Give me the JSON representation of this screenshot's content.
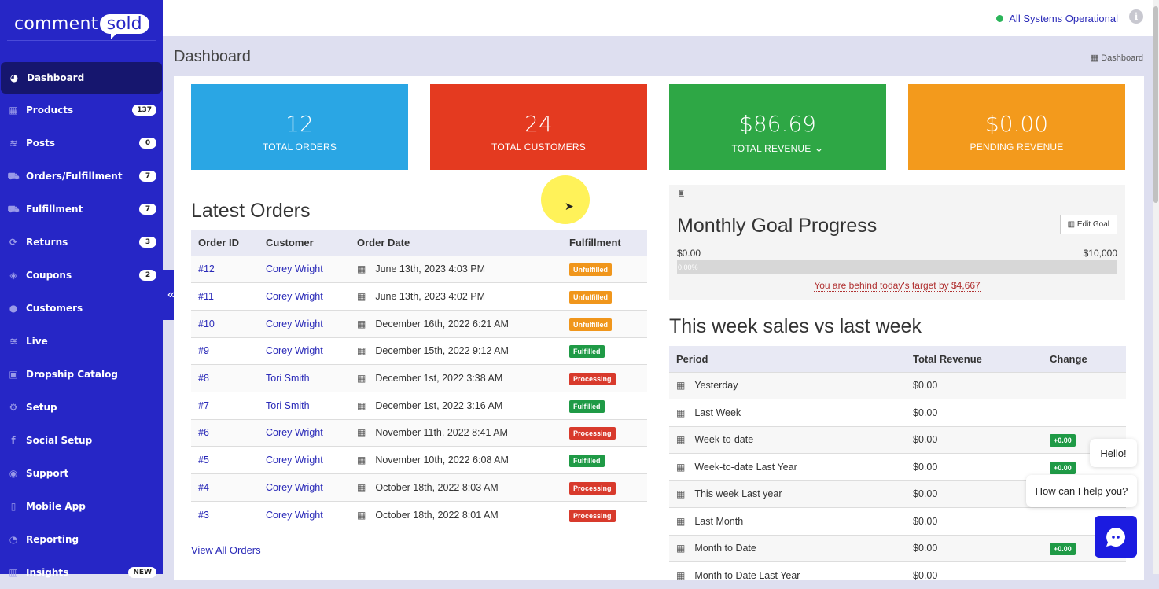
{
  "brand": {
    "logo_left": "comment",
    "logo_right": "sold"
  },
  "sidebar": {
    "items": [
      {
        "label": "Dashboard",
        "icon": "tachometer-icon",
        "glyph": "◕",
        "active": true
      },
      {
        "label": "Products",
        "icon": "grid-icon",
        "glyph": "▦",
        "badge": "137"
      },
      {
        "label": "Posts",
        "icon": "rss-icon",
        "glyph": "≋",
        "badge": "0"
      },
      {
        "label": "Orders/Fulfillment",
        "icon": "truck-icon",
        "glyph": "⛟",
        "badge": "7"
      },
      {
        "label": "Fulfillment",
        "icon": "truck-icon",
        "glyph": "⛟",
        "badge": "7"
      },
      {
        "label": "Returns",
        "icon": "refresh-icon",
        "glyph": "⟳",
        "badge": "3"
      },
      {
        "label": "Coupons",
        "icon": "ticket-icon",
        "glyph": "◈",
        "badge": "2"
      },
      {
        "label": "Customers",
        "icon": "user-icon",
        "glyph": "●"
      },
      {
        "label": "Live",
        "icon": "rss-icon",
        "glyph": "≋"
      },
      {
        "label": "Dropship Catalog",
        "icon": "box-icon",
        "glyph": "▣"
      },
      {
        "label": "Setup",
        "icon": "gears-icon",
        "glyph": "⚙"
      },
      {
        "label": "Social Setup",
        "icon": "facebook-icon",
        "glyph": "f"
      },
      {
        "label": "Support",
        "icon": "comments-icon",
        "glyph": "◉"
      },
      {
        "label": "Mobile App",
        "icon": "mobile-icon",
        "glyph": "▯"
      },
      {
        "label": "Reporting",
        "icon": "pie-chart-icon",
        "glyph": "◔"
      },
      {
        "label": "Insights",
        "icon": "bar-chart-icon",
        "glyph": "▥",
        "badge": "NEW"
      }
    ],
    "collapse": "«"
  },
  "topbar": {
    "status": "All Systems Operational",
    "status_color": "#2bb55a"
  },
  "page": {
    "title": "Dashboard",
    "breadcrumb": "Dashboard"
  },
  "stats": [
    {
      "value": "12",
      "label": "TOTAL ORDERS",
      "color": "#2aa6e4"
    },
    {
      "value": "24",
      "label": "TOTAL CUSTOMERS",
      "color": "#e43a20"
    },
    {
      "value": "$86.69",
      "label": "TOTAL REVENUE",
      "color": "#2ea745",
      "dropdown": true
    },
    {
      "value": "$0.00",
      "label": "PENDING REVENUE",
      "color": "#f39a1c"
    }
  ],
  "orders": {
    "title": "Latest Orders",
    "columns": [
      "Order ID",
      "Customer",
      "Order Date",
      "Fulfillment"
    ],
    "rows": [
      {
        "id": "#12",
        "customer": "Corey Wright",
        "date": "June 13th, 2023 4:03 PM",
        "status": "Unfulfilled"
      },
      {
        "id": "#11",
        "customer": "Corey Wright",
        "date": "June 13th, 2023 4:02 PM",
        "status": "Unfulfilled"
      },
      {
        "id": "#10",
        "customer": "Corey Wright",
        "date": "December 16th, 2022 6:21 AM",
        "status": "Unfulfilled"
      },
      {
        "id": "#9",
        "customer": "Corey Wright",
        "date": "December 15th, 2022 9:12 AM",
        "status": "Fulfilled"
      },
      {
        "id": "#8",
        "customer": "Tori Smith",
        "date": "December 1st, 2022 3:38 AM",
        "status": "Processing"
      },
      {
        "id": "#7",
        "customer": "Tori Smith",
        "date": "December 1st, 2022 3:16 AM",
        "status": "Fulfilled"
      },
      {
        "id": "#6",
        "customer": "Corey Wright",
        "date": "November 11th, 2022 8:41 AM",
        "status": "Processing"
      },
      {
        "id": "#5",
        "customer": "Corey Wright",
        "date": "November 10th, 2022 6:08 AM",
        "status": "Fulfilled"
      },
      {
        "id": "#4",
        "customer": "Corey Wright",
        "date": "October 18th, 2022 8:03 AM",
        "status": "Processing"
      },
      {
        "id": "#3",
        "customer": "Corey Wright",
        "date": "October 18th, 2022 8:01 AM",
        "status": "Processing"
      }
    ],
    "status_colors": {
      "Unfulfilled": "#f0961c",
      "Fulfilled": "#1f9a46",
      "Processing": "#d83a2c"
    },
    "view_all": "View All Orders"
  },
  "goal": {
    "title": "Monthly Goal Progress",
    "edit_label": "Edit Goal",
    "min": "$0.00",
    "max": "$10,000",
    "progress_percent": 0,
    "progress_label": "0.00%",
    "message": "You are behind today's target by $4,667"
  },
  "sales": {
    "title": "This week sales vs last week",
    "columns": [
      "Period",
      "Total Revenue",
      "Change"
    ],
    "rows": [
      {
        "period": "Yesterday",
        "revenue": "$0.00",
        "change": ""
      },
      {
        "period": "Last Week",
        "revenue": "$0.00",
        "change": ""
      },
      {
        "period": "Week-to-date",
        "revenue": "$0.00",
        "change": "+0.00"
      },
      {
        "period": "Week-to-date Last Year",
        "revenue": "$0.00",
        "change": "+0.00"
      },
      {
        "period": "This week Last year",
        "revenue": "$0.00",
        "change": ""
      },
      {
        "period": "Last Month",
        "revenue": "$0.00",
        "change": ""
      },
      {
        "period": "Month to Date",
        "revenue": "$0.00",
        "change": "+0.00"
      },
      {
        "period": "Month to Date Last Year",
        "revenue": "$0.00",
        "change": ""
      }
    ]
  },
  "chat": {
    "hello": "Hello!",
    "help": "How can I help you?"
  }
}
